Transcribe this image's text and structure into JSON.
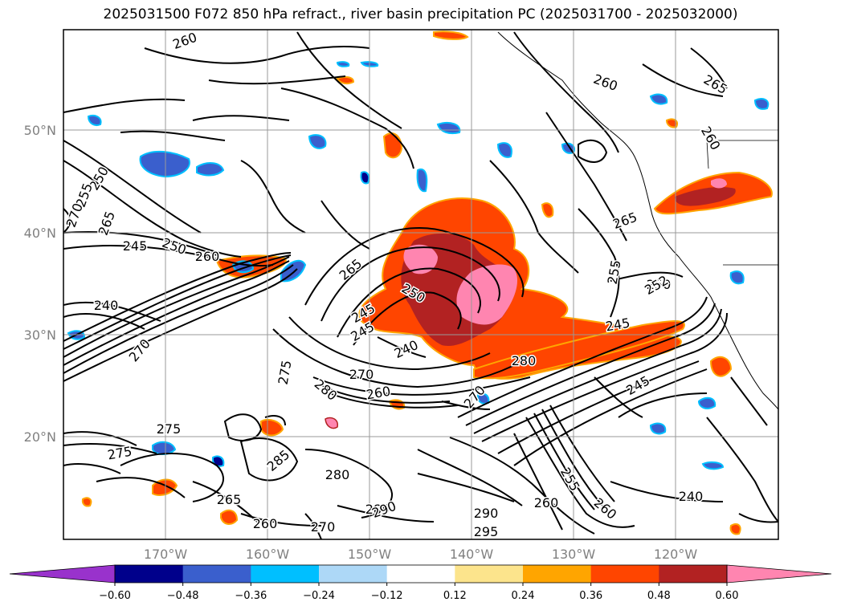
{
  "title": "2025031500 F072 850 hPa refract., river basin precipitation PC (2025031700 - 2025032000)",
  "lat_labels": [
    "50°N",
    "40°N",
    "30°N",
    "20°N"
  ],
  "lon_labels": [
    "170°W",
    "160°W",
    "150°W",
    "140°W",
    "130°W",
    "120°W"
  ],
  "colorbar": {
    "ticks": [
      "−0.60",
      "−0.48",
      "−0.36",
      "−0.24",
      "−0.12",
      "0.12",
      "0.24",
      "0.36",
      "0.48",
      "0.60"
    ],
    "colors": [
      "#9932cc",
      "#00008b",
      "#3a5fcd",
      "#00bfff",
      "#add8f7",
      "#ffffff",
      "#fce48c",
      "#ffa500",
      "#ff4500",
      "#b22222",
      "#ff85b0",
      "#ff85b0"
    ]
  },
  "contour_labels": [
    "260",
    "260",
    "265",
    "260",
    "250",
    "255",
    "265",
    "270",
    "245",
    "250",
    "260",
    "240",
    "265",
    "250",
    "245",
    "240",
    "255",
    "245",
    "250",
    "270",
    "260",
    "245",
    "270",
    "275",
    "280",
    "270",
    "275",
    "275",
    "285",
    "280",
    "265",
    "290",
    "260",
    "270",
    "285",
    "290",
    "295",
    "240",
    "255",
    "260",
    "260",
    "280",
    "245",
    "252",
    "265"
  ],
  "pink_region_colors": {
    "pink": "#ff85b0",
    "darkred": "#b22222",
    "orangered": "#ff4500",
    "orange": "#ffa500",
    "yellow": "#fce48c",
    "lightblue": "#add8f7",
    "skyblue": "#00bfff",
    "royal": "#3a5fcd"
  }
}
